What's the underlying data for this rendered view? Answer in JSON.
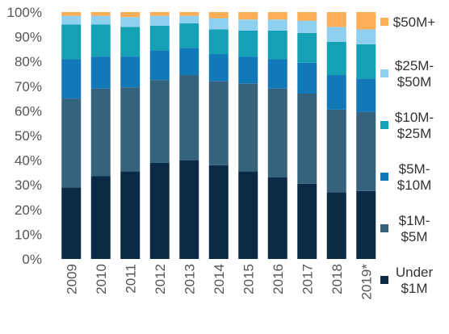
{
  "chart_data": {
    "type": "bar",
    "stacked": true,
    "categories": [
      "2009",
      "2010",
      "2011",
      "2012",
      "2013",
      "2014",
      "2015",
      "2016",
      "2017",
      "2018",
      "2019*"
    ],
    "ylim": [
      0,
      100
    ],
    "y_tick_labels": [
      "0%",
      "10%",
      "20%",
      "30%",
      "40%",
      "50%",
      "60%",
      "70%",
      "80%",
      "90%",
      "100%"
    ],
    "legend_position": "right",
    "series": [
      {
        "name": "Under $1M",
        "legend_lines": [
          "Under",
          "$1M"
        ],
        "color": "#0b2a45",
        "values": [
          29,
          33.5,
          35.5,
          39,
          40,
          38,
          35.5,
          33,
          30.5,
          27,
          27.5
        ]
      },
      {
        "name": "$1M-$5M",
        "legend_lines": [
          "$1M-",
          "$5M"
        ],
        "color": "#35637e",
        "values": [
          36,
          35.5,
          34,
          33.5,
          34.5,
          34,
          35.5,
          36,
          36.5,
          33.5,
          32
        ]
      },
      {
        "name": "$5M-$10M",
        "legend_lines": [
          "$5M-",
          "$10M"
        ],
        "color": "#1179b8",
        "values": [
          16,
          13,
          12.5,
          12,
          11,
          11,
          11,
          12,
          12.5,
          14,
          13.5
        ]
      },
      {
        "name": "$10M-$25M",
        "legend_lines": [
          "$10M-",
          "$25M"
        ],
        "color": "#16a0b5",
        "values": [
          14,
          13,
          12,
          10,
          10,
          10,
          10.5,
          11.5,
          12,
          13.5,
          14
        ]
      },
      {
        "name": "$25M-$50M",
        "legend_lines": [
          "$25M-",
          "$50M"
        ],
        "color": "#8fd0f1",
        "values": [
          3.5,
          3.5,
          4,
          4,
          3,
          4.5,
          4.5,
          4.5,
          5,
          6,
          6
        ]
      },
      {
        "name": "$50M+",
        "legend_lines": [
          "$50M+"
        ],
        "color": "#fdad55",
        "values": [
          1.5,
          1.5,
          2,
          1.5,
          1.5,
          2.5,
          3,
          3,
          3.5,
          6,
          7
        ]
      }
    ]
  }
}
